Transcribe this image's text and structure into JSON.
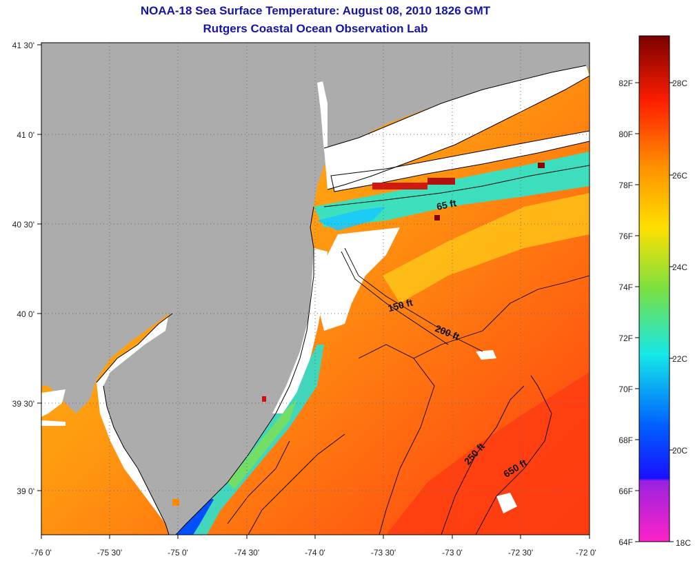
{
  "header": {
    "title": "NOAA-18 Sea Surface Temperature:  August 08, 2010 1826 GMT",
    "subtitle": "Rutgers Coastal Ocean Observation Lab"
  },
  "axes": {
    "lon_labels": [
      "-76 0'",
      "-75 30'",
      "-75 0'",
      "-74 30'",
      "-74 0'",
      "-73 30'",
      "-73 0'",
      "-72 30'",
      "-72 0'"
    ],
    "lat_labels": [
      "41 30'",
      "41 0'",
      "40 30'",
      "40 0'",
      "39 30'",
      "39 0'"
    ],
    "lon_range": [
      -76.0,
      -72.0
    ],
    "lat_range": [
      38.75,
      41.5
    ]
  },
  "contours": [
    {
      "label": "65 ft"
    },
    {
      "label": "150 ft"
    },
    {
      "label": "200 ft"
    },
    {
      "label": "250 ft"
    },
    {
      "label": "650 ft"
    }
  ],
  "colorbar": {
    "fahrenheit": [
      "82F",
      "80F",
      "78F",
      "76F",
      "74F",
      "72F",
      "70F",
      "68F",
      "66F",
      "64F"
    ],
    "celsius": [
      "28C",
      "26C",
      "24C",
      "22C",
      "20C",
      "18C"
    ],
    "range_f": [
      64,
      84
    ],
    "colors": {
      "max": "#7a0000",
      "red": "#ff1e00",
      "orange": "#ff7a00",
      "yellow": "#ffd800",
      "green": "#7be040",
      "cyan": "#15e8e8",
      "blue": "#0030ff",
      "magenta": "#ff22c8"
    }
  },
  "map_colors": {
    "land": "#acacac",
    "no_data": "#ffffff",
    "coastline": "#000000"
  }
}
